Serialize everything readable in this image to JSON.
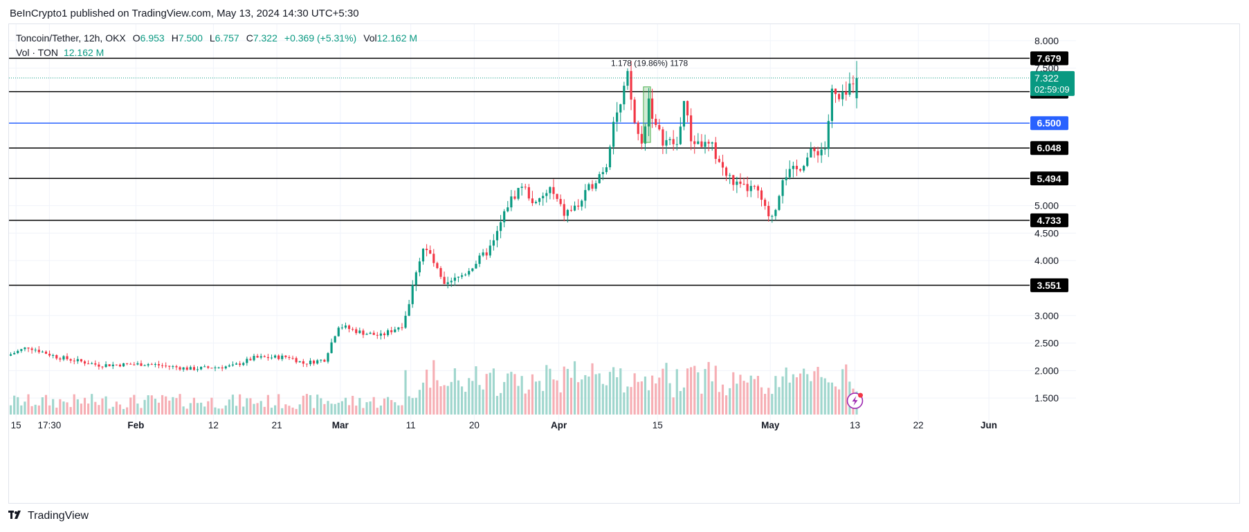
{
  "header": {
    "published": "BeInCrypto1 published on TradingView.com, May 13, 2024 14:30 UTC+5:30"
  },
  "legend": {
    "symbol": "Toncoin/Tether, 12h, OKX",
    "open_label": "O",
    "open": "6.953",
    "high_label": "H",
    "high": "7.500",
    "low_label": "L",
    "low": "6.757",
    "close_label": "C",
    "close": "7.322",
    "change": "+0.369 (+5.31%)",
    "vol_label": "Vol",
    "vol": "12.162 M",
    "vol_row_label": "Vol · TON",
    "vol_row_value": "12.162 M"
  },
  "footer": {
    "brand": "TradingView",
    "logo_icon": "tradingview-logo-icon"
  },
  "chart_data": {
    "type": "candlestick",
    "symbol": "Toncoin/Tether",
    "interval": "12h",
    "ylim": [
      1.2,
      8.3
    ],
    "price_ticks": [
      "8.000",
      "7.500",
      "5.000",
      "4.500",
      "4.000",
      "3.000",
      "2.500",
      "2.000",
      "1.500"
    ],
    "time_ticks": [
      {
        "label": "15",
        "date": "2024-01-15"
      },
      {
        "label": "17:30",
        "date": "2024-01-19T17:30"
      },
      {
        "label": "Feb",
        "date": "2024-02-01"
      },
      {
        "label": "12",
        "date": "2024-02-12"
      },
      {
        "label": "21",
        "date": "2024-02-21"
      },
      {
        "label": "Mar",
        "date": "2024-03-01"
      },
      {
        "label": "11",
        "date": "2024-03-11"
      },
      {
        "label": "20",
        "date": "2024-03-20"
      },
      {
        "label": "Apr",
        "date": "2024-04-01"
      },
      {
        "label": "15",
        "date": "2024-04-15"
      },
      {
        "label": "May",
        "date": "2024-05-01"
      },
      {
        "label": "13",
        "date": "2024-05-13"
      },
      {
        "label": "22",
        "date": "2024-05-22"
      },
      {
        "label": "Jun",
        "date": "2024-06-01"
      }
    ],
    "x_range": [
      "2024-01-14",
      "2024-06-06"
    ],
    "horizontal_levels": [
      {
        "value": 7.679,
        "label": "7.679",
        "color": "#000000"
      },
      {
        "value": 7.073,
        "label": "7.073",
        "color": "#000000"
      },
      {
        "value": 6.5,
        "label": "6.500",
        "color": "#2962ff"
      },
      {
        "value": 6.048,
        "label": "6.048",
        "color": "#000000"
      },
      {
        "value": 5.494,
        "label": "5.494",
        "color": "#000000"
      },
      {
        "value": 4.733,
        "label": "4.733",
        "color": "#000000"
      },
      {
        "value": 3.551,
        "label": "3.551",
        "color": "#000000"
      }
    ],
    "last_price": {
      "value": 7.322,
      "label": "7.322",
      "countdown": "02:59:09",
      "color": "#089981"
    },
    "annotation": {
      "text": "1.178 (19.86%) 1178",
      "date": "2024-04-08",
      "value": 7.6
    },
    "measure_box": {
      "from_date": "2024-04-13",
      "to_date": "2024-04-14",
      "low": 6.15,
      "high": 7.16
    },
    "anchors": [
      [
        "2024-01-14",
        2.27
      ],
      [
        "2024-01-17",
        2.43
      ],
      [
        "2024-01-21",
        2.25
      ],
      [
        "2024-01-27",
        2.1
      ],
      [
        "2024-02-03",
        2.12
      ],
      [
        "2024-02-09",
        2.03
      ],
      [
        "2024-02-15",
        2.08
      ],
      [
        "2024-02-18",
        2.23
      ],
      [
        "2024-02-23",
        2.25
      ],
      [
        "2024-02-25",
        2.13
      ],
      [
        "2024-02-28",
        2.2
      ],
      [
        "2024-03-01",
        2.82
      ],
      [
        "2024-03-04",
        2.7
      ],
      [
        "2024-03-07",
        2.63
      ],
      [
        "2024-03-10",
        2.83
      ],
      [
        "2024-03-11",
        3.22
      ],
      [
        "2024-03-12",
        3.83
      ],
      [
        "2024-03-13",
        4.22
      ],
      [
        "2024-03-14",
        4.1
      ],
      [
        "2024-03-16",
        3.52
      ],
      [
        "2024-03-19",
        3.78
      ],
      [
        "2024-03-22",
        4.15
      ],
      [
        "2024-03-23",
        4.33
      ],
      [
        "2024-03-25",
        5.02
      ],
      [
        "2024-03-27",
        5.38
      ],
      [
        "2024-03-29",
        5.0
      ],
      [
        "2024-03-31",
        5.3
      ],
      [
        "2024-04-02",
        4.85
      ],
      [
        "2024-04-04",
        5.0
      ],
      [
        "2024-04-06",
        5.4
      ],
      [
        "2024-04-08",
        5.75
      ],
      [
        "2024-04-09",
        6.6
      ],
      [
        "2024-04-10",
        6.8
      ],
      [
        "2024-04-11",
        7.35
      ],
      [
        "2024-04-12",
        6.5
      ],
      [
        "2024-04-13",
        6.1
      ],
      [
        "2024-04-14",
        6.95
      ],
      [
        "2024-04-15",
        6.4
      ],
      [
        "2024-04-16",
        6.2
      ],
      [
        "2024-04-18",
        6.1
      ],
      [
        "2024-04-19",
        6.9
      ],
      [
        "2024-04-20",
        6.2
      ],
      [
        "2024-04-23",
        6.05
      ],
      [
        "2024-04-25",
        5.55
      ],
      [
        "2024-04-27",
        5.32
      ],
      [
        "2024-04-29",
        5.3
      ],
      [
        "2024-04-30",
        5.1
      ],
      [
        "2024-05-01",
        4.75
      ],
      [
        "2024-05-02",
        4.95
      ],
      [
        "2024-05-03",
        5.55
      ],
      [
        "2024-05-05",
        5.65
      ],
      [
        "2024-05-07",
        5.95
      ],
      [
        "2024-05-09",
        6.05
      ],
      [
        "2024-05-10",
        7.05
      ],
      [
        "2024-05-11",
        6.9
      ],
      [
        "2024-05-12",
        7.0
      ],
      [
        "2024-05-13",
        7.32
      ]
    ],
    "up_color": "#089981",
    "down_color": "#f23645"
  }
}
